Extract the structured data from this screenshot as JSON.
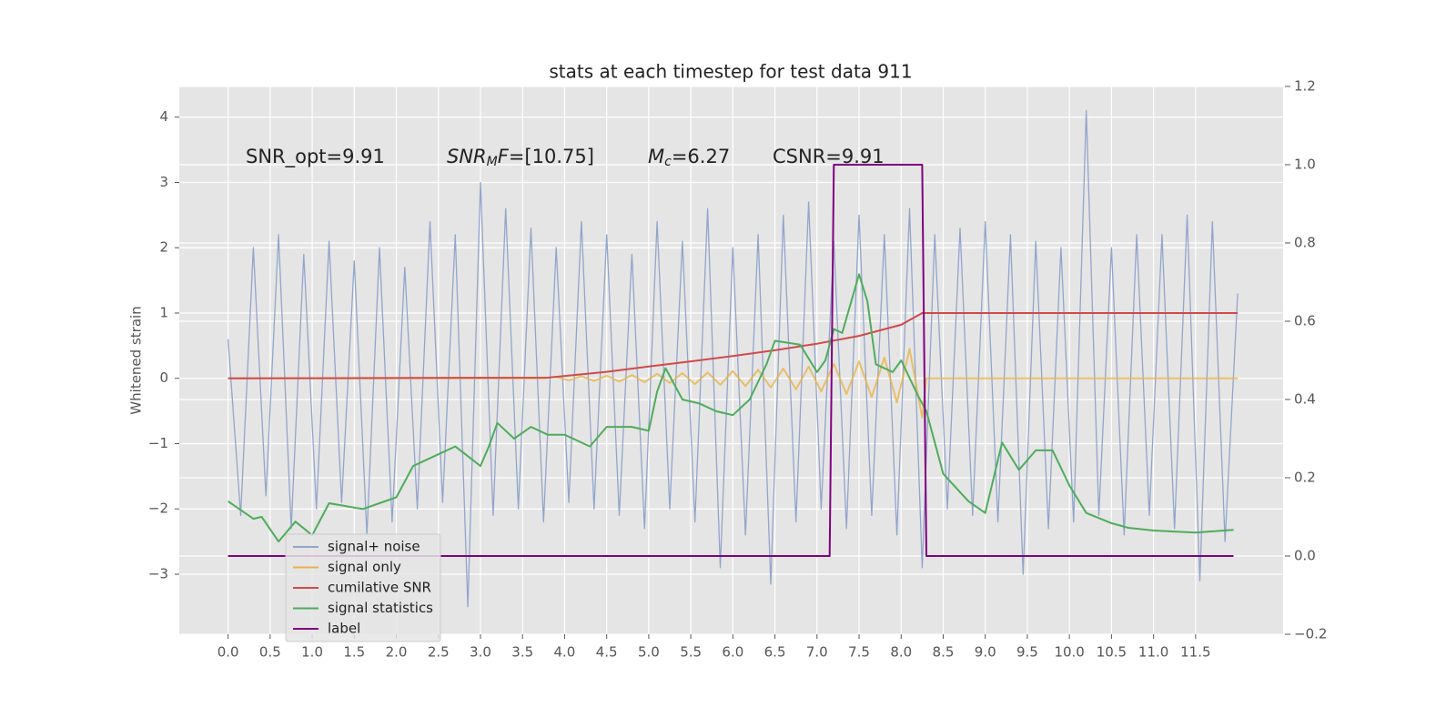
{
  "chart_data": {
    "type": "line",
    "title": "stats at each timestep for test data 911",
    "y_label": "Whitened strain",
    "xlim": [
      -0.58,
      12.54
    ],
    "ylim": [
      -3.92,
      4.47
    ],
    "y2lim": [
      -0.2,
      1.2
    ],
    "xticks": [
      {
        "value": 0,
        "label": "0.0"
      },
      0.5,
      {
        "value": 1,
        "label": "1.0"
      },
      1.5,
      {
        "value": 2,
        "label": "2.0"
      },
      2.5,
      {
        "value": 3,
        "label": "3.0"
      },
      3.5,
      {
        "value": 4,
        "label": "4.0"
      },
      4.5,
      {
        "value": 5,
        "label": "5.0"
      },
      5.5,
      {
        "value": 6,
        "label": "6.0"
      },
      6.5,
      {
        "value": 7,
        "label": "7.0"
      },
      7.5,
      {
        "value": 8,
        "label": "8.0"
      },
      8.5,
      {
        "value": 9,
        "label": "9.0"
      },
      9.5,
      {
        "value": 10,
        "label": "10.0"
      },
      10.5,
      {
        "value": 11,
        "label": "11.0"
      },
      11.5
    ],
    "yticks": [
      {
        "value": -3,
        "label": "−3"
      },
      {
        "value": -2,
        "label": "−2"
      },
      {
        "value": -1,
        "label": "−1"
      },
      0,
      1,
      2,
      3,
      4
    ],
    "y2ticks": [
      {
        "value": -0.2,
        "label": "−0.2"
      },
      {
        "value": 0,
        "label": "0.0"
      },
      0.2,
      0.4,
      0.6,
      0.8,
      {
        "value": 1,
        "label": "1.0"
      },
      1.2
    ],
    "grid": true,
    "legend": "lower left",
    "annotations": [
      [
        {
          "text": "SNR_opt=9.91"
        }
      ],
      [
        {
          "text": "SNR",
          "italic": true
        },
        {
          "text": "M",
          "italic": true,
          "subscript": true
        },
        {
          "text": "F",
          "italic": true
        },
        {
          "text": "=[10.75]"
        }
      ],
      [
        {
          "text": "M",
          "italic": true
        },
        {
          "text": "c",
          "italic": true,
          "subscript": true
        },
        {
          "text": "=6.27"
        }
      ],
      [
        {
          "text": "CSNR=9.91"
        }
      ]
    ],
    "series": [
      {
        "name": "signal+ noise",
        "color": "#92a5cb",
        "x": [
          0,
          0.15,
          0.3,
          0.45,
          0.6,
          0.75,
          0.9,
          1.05,
          1.2,
          1.35,
          1.5,
          1.65,
          1.8,
          1.95,
          2.1,
          2.25,
          2.4,
          2.55,
          2.7,
          2.85,
          3.0,
          3.15,
          3.3,
          3.45,
          3.6,
          3.75,
          3.9,
          4.05,
          4.2,
          4.35,
          4.5,
          4.65,
          4.8,
          4.95,
          5.1,
          5.25,
          5.4,
          5.55,
          5.7,
          5.85,
          6.0,
          6.15,
          6.3,
          6.45,
          6.6,
          6.75,
          6.9,
          7.05,
          7.2,
          7.35,
          7.5,
          7.65,
          7.8,
          7.95,
          8.1,
          8.25,
          8.4,
          8.55,
          8.7,
          8.85,
          9.0,
          9.15,
          9.3,
          9.45,
          9.6,
          9.75,
          9.9,
          10.05,
          10.2,
          10.35,
          10.5,
          10.65,
          10.8,
          10.95,
          11.1,
          11.25,
          11.4,
          11.55,
          11.7,
          11.85,
          12.0
        ],
        "values": [
          0.6,
          -2.1,
          2.0,
          -1.8,
          2.2,
          -2.3,
          1.9,
          -2.0,
          2.1,
          -1.9,
          1.8,
          -2.4,
          2.0,
          -2.2,
          1.7,
          -2.0,
          2.4,
          -1.9,
          2.2,
          -3.5,
          3.0,
          -2.1,
          2.6,
          -2.0,
          2.3,
          -2.2,
          2.0,
          -1.9,
          2.4,
          -2.0,
          2.2,
          -2.1,
          1.9,
          -2.3,
          2.4,
          -2.0,
          2.1,
          -2.2,
          2.6,
          -2.9,
          2.0,
          -2.4,
          2.2,
          -3.15,
          2.5,
          -2.2,
          2.7,
          -2.0,
          2.1,
          -2.3,
          2.5,
          -2.1,
          2.2,
          -2.4,
          2.6,
          -2.9,
          2.2,
          -2.0,
          2.3,
          -2.1,
          2.4,
          -2.2,
          2.2,
          -3.0,
          2.1,
          -2.3,
          2.0,
          -2.2,
          4.1,
          -2.1,
          2.0,
          -2.4,
          2.2,
          -2.1,
          2.2,
          -2.3,
          2.5,
          -3.1,
          2.4,
          -2.5,
          1.3
        ]
      },
      {
        "name": "signal only",
        "color": "#e8b44a",
        "x": [
          0,
          3.75,
          3.9,
          4.05,
          4.2,
          4.35,
          4.5,
          4.65,
          4.8,
          4.95,
          5.1,
          5.25,
          5.4,
          5.55,
          5.7,
          5.85,
          6.0,
          6.15,
          6.3,
          6.45,
          6.6,
          6.75,
          6.9,
          7.05,
          7.2,
          7.35,
          7.5,
          7.65,
          7.8,
          7.95,
          8.1,
          8.25,
          8.3,
          12.0
        ],
        "values": [
          0,
          0,
          0.02,
          -0.03,
          0.03,
          -0.04,
          0.04,
          -0.05,
          0.05,
          -0.06,
          0.07,
          -0.07,
          0.08,
          -0.09,
          0.09,
          -0.1,
          0.11,
          -0.12,
          0.13,
          -0.14,
          0.15,
          -0.17,
          0.18,
          -0.2,
          0.22,
          -0.24,
          0.26,
          -0.29,
          0.32,
          -0.37,
          0.45,
          -0.6,
          0,
          0
        ]
      },
      {
        "name": "cumilative SNR",
        "color": "#d04a4a",
        "x": [
          0,
          3.8,
          4.5,
          5.0,
          5.5,
          6.0,
          6.5,
          7.0,
          7.5,
          8.0,
          8.25,
          12.0
        ],
        "values": [
          0,
          0.01,
          0.1,
          0.18,
          0.26,
          0.34,
          0.43,
          0.53,
          0.65,
          0.82,
          1.0,
          1.0
        ]
      },
      {
        "name": "signal statistics",
        "color": "#4eac5b",
        "axis": "y2",
        "x": [
          0,
          0.3,
          0.4,
          0.6,
          0.8,
          1.0,
          1.2,
          1.6,
          2.0,
          2.2,
          2.5,
          2.7,
          3.0,
          3.1,
          3.2,
          3.4,
          3.6,
          3.8,
          4.0,
          4.3,
          4.5,
          4.8,
          5.0,
          5.1,
          5.2,
          5.4,
          5.6,
          5.8,
          6.0,
          6.2,
          6.4,
          6.5,
          6.8,
          7.0,
          7.1,
          7.2,
          7.3,
          7.5,
          7.6,
          7.7,
          7.9,
          8.0,
          8.2,
          8.3,
          8.5,
          8.8,
          9.0,
          9.2,
          9.4,
          9.6,
          9.8,
          10.0,
          10.2,
          10.5,
          10.7,
          11.0,
          11.5,
          11.95
        ],
        "values": [
          0.14,
          0.095,
          0.1,
          0.037,
          0.088,
          0.053,
          0.135,
          0.12,
          0.15,
          0.23,
          0.26,
          0.28,
          0.23,
          0.28,
          0.34,
          0.3,
          0.33,
          0.31,
          0.31,
          0.28,
          0.33,
          0.33,
          0.32,
          0.42,
          0.48,
          0.4,
          0.39,
          0.37,
          0.36,
          0.4,
          0.49,
          0.55,
          0.54,
          0.47,
          0.5,
          0.58,
          0.57,
          0.72,
          0.65,
          0.49,
          0.47,
          0.5,
          0.41,
          0.37,
          0.21,
          0.14,
          0.11,
          0.29,
          0.22,
          0.27,
          0.27,
          0.18,
          0.11,
          0.084,
          0.072,
          0.065,
          0.06,
          0.067
        ]
      },
      {
        "name": "label",
        "color": "#800080",
        "axis": "y2",
        "x": [
          0,
          7.15,
          7.2,
          8.25,
          8.3,
          11.95
        ],
        "values": [
          0,
          0,
          1,
          1,
          0,
          0
        ]
      }
    ]
  }
}
